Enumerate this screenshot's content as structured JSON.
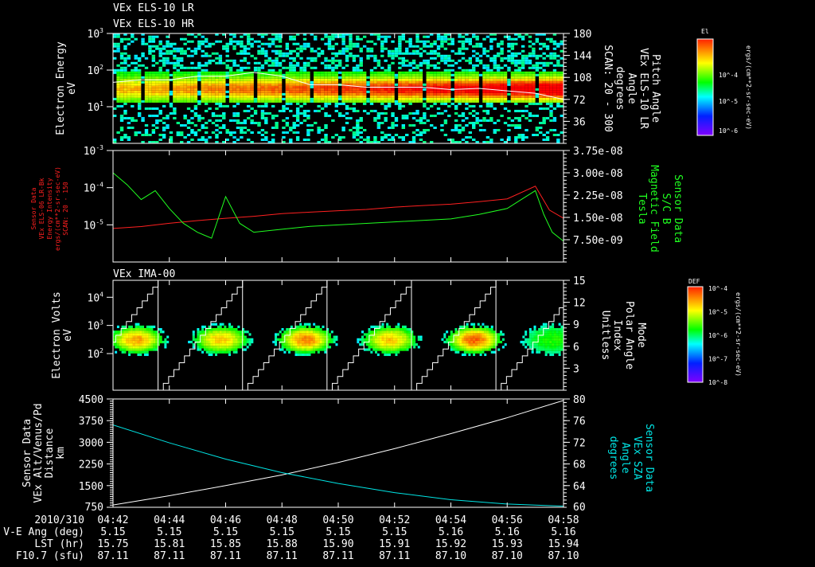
{
  "chart_data": [
    {
      "type": "heatmap",
      "titles": [
        "VEx ELS-10 LR",
        "VEx ELS-10 HR"
      ],
      "ylabel": [
        "Electron Energy",
        "eV"
      ],
      "yscale": "log",
      "ylim": [
        1,
        1000
      ],
      "yticks": [
        {
          "base": "10",
          "exp": "3",
          "v": 1000
        },
        {
          "base": "10",
          "exp": "2",
          "v": 100
        },
        {
          "base": "10",
          "exp": "1",
          "v": 10
        }
      ],
      "y2label": [
        "Pitch Angle",
        "VEx ELS-10 LR",
        "Angle",
        "degrees",
        "SCAN: 20 - 300"
      ],
      "y2lim": [
        0,
        180
      ],
      "y2ticks": [
        "180",
        "144",
        "108",
        "72",
        "36"
      ],
      "colorbar": {
        "title": "El",
        "units": "ergs/(cm**2-sr-sec-eV)",
        "ticks": [
          {
            "base": "10",
            "exp": "-4"
          },
          {
            "base": "10",
            "exp": "-5"
          },
          {
            "base": "10",
            "exp": "-6"
          }
        ]
      },
      "overlay_line": {
        "color": "#ffffff",
        "t_min": [
          0,
          1,
          2,
          3,
          4,
          5,
          6,
          7,
          8,
          9,
          10,
          11,
          12,
          13,
          14,
          15,
          16
        ],
        "degrees": [
          100,
          104,
          104,
          110,
          110,
          116,
          110,
          96,
          96,
          92,
          92,
          92,
          88,
          90,
          86,
          82,
          72
        ]
      }
    },
    {
      "type": "line",
      "ylabel": [
        "Sensor Data",
        "VEx ELS-06 LR-Bk",
        "Energy Intensity",
        "ergs/(cm**2-sr-sec-eV)",
        "SCAN: 20 - 150"
      ],
      "yscale": "log",
      "ylim": [
        1e-06,
        0.001
      ],
      "yticks": [
        {
          "base": "10",
          "exp": "-3",
          "v": 0.001
        },
        {
          "base": "10",
          "exp": "-4",
          "v": 0.0001
        },
        {
          "base": "10",
          "exp": "-5",
          "v": 1e-05
        }
      ],
      "y2label": [
        "Sensor Data",
        "S/C B",
        "Magnetic Field",
        "Tesla"
      ],
      "y2lim": [
        0,
        3.75e-08
      ],
      "y2ticks": [
        "3.75e-08",
        "3.00e-08",
        "2.25e-08",
        "1.50e-08",
        "7.50e-09"
      ],
      "series": [
        {
          "name": "Energy Intensity",
          "color": "#ff2020",
          "axis": "left",
          "t_min": [
            0,
            1,
            2,
            3,
            4,
            5,
            6,
            7,
            8,
            9,
            10,
            11,
            12,
            13,
            14,
            15,
            15.5,
            16
          ],
          "values": [
            8e-06,
            9e-06,
            1.1e-05,
            1.3e-05,
            1.5e-05,
            1.7e-05,
            2e-05,
            2.2e-05,
            2.4e-05,
            2.6e-05,
            3e-05,
            3.3e-05,
            3.6e-05,
            4.2e-05,
            5e-05,
            0.00011,
            2.5e-05,
            1.5e-05
          ]
        },
        {
          "name": "S/C B",
          "color": "#20ff20",
          "axis": "right",
          "t_min": [
            0,
            0.5,
            1,
            1.5,
            2,
            2.5,
            3,
            3.5,
            4,
            4.5,
            5,
            6,
            7,
            8,
            9,
            10,
            11,
            12,
            13,
            14,
            14.5,
            15,
            15.3,
            15.6,
            16
          ],
          "values": [
            3e-08,
            2.6e-08,
            2.1e-08,
            2.4e-08,
            1.8e-08,
            1.3e-08,
            1e-08,
            8e-09,
            2.2e-08,
            1.3e-08,
            1e-08,
            1.1e-08,
            1.2e-08,
            1.25e-08,
            1.3e-08,
            1.35e-08,
            1.4e-08,
            1.45e-08,
            1.6e-08,
            1.8e-08,
            2.1e-08,
            2.4e-08,
            1.6e-08,
            1e-08,
            7e-09
          ]
        }
      ]
    },
    {
      "type": "heatmap",
      "title": "VEx IMA-00",
      "ylabel": [
        "Electron Volts",
        "eV"
      ],
      "yscale": "log",
      "ylim": [
        5,
        40000
      ],
      "yticks": [
        {
          "base": "10",
          "exp": "4",
          "v": 10000
        },
        {
          "base": "10",
          "exp": "3",
          "v": 1000
        },
        {
          "base": "10",
          "exp": "2",
          "v": 100
        }
      ],
      "y2label": [
        "Mode",
        "Polar Angle",
        "Index",
        "Unitless"
      ],
      "y2lim": [
        0,
        15
      ],
      "y2ticks": [
        "15",
        "12",
        "9",
        "6",
        "3"
      ],
      "blob_centers_t_min": [
        0.8,
        3.8,
        6.8,
        9.8,
        12.8,
        15.6
      ],
      "blob_intensity": [
        0.8,
        0.75,
        0.85,
        0.75,
        0.9,
        0.35
      ],
      "mode_resets_t_min": [
        1.6,
        4.6,
        7.6,
        10.6,
        13.6,
        16.6
      ],
      "colorbar": {
        "title": "DEF",
        "units": "ergs/(cm**2-sr-sec-eV)",
        "ticks": [
          {
            "base": "10",
            "exp": "-4"
          },
          {
            "base": "10",
            "exp": "-5"
          },
          {
            "base": "10",
            "exp": "-6"
          },
          {
            "base": "10",
            "exp": "-7"
          },
          {
            "base": "10",
            "exp": "-8"
          }
        ]
      }
    },
    {
      "type": "line",
      "ylabel": [
        "Sensor Data",
        "VEx Alt/Venus/Pd",
        "Distance",
        "km"
      ],
      "ylim": [
        750,
        4500
      ],
      "yticks": [
        "4500",
        "3750",
        "3000",
        "2250",
        "1500",
        "750"
      ],
      "y2label": [
        "Sensor Data",
        "VEx SZA",
        "Angle",
        "degrees"
      ],
      "y2lim": [
        60,
        80
      ],
      "y2ticks": [
        "80",
        "76",
        "72",
        "68",
        "64",
        "60"
      ],
      "series": [
        {
          "name": "Altitude",
          "color": "#ffffff",
          "axis": "left",
          "t_min": [
            0,
            2,
            4,
            6,
            8,
            10,
            12,
            14,
            16
          ],
          "values": [
            830,
            1150,
            1500,
            1870,
            2300,
            2780,
            3300,
            3850,
            4450
          ]
        },
        {
          "name": "SZA",
          "color": "#00e5e5",
          "axis": "right",
          "t_min": [
            0,
            2,
            4,
            6,
            8,
            10,
            12,
            14,
            16
          ],
          "values": [
            75.2,
            71.9,
            68.9,
            66.4,
            64.4,
            62.7,
            61.4,
            60.6,
            60.2
          ]
        }
      ]
    }
  ],
  "x_axis": {
    "date_label": "2010/310",
    "ticks": [
      "04:42",
      "04:44",
      "04:46",
      "04:48",
      "04:50",
      "04:52",
      "04:54",
      "04:56",
      "04:58"
    ],
    "rows": [
      {
        "label": "V-E Ang (deg)",
        "values": [
          "5.15",
          "5.15",
          "5.15",
          "5.15",
          "5.15",
          "5.15",
          "5.16",
          "5.16",
          "5.16"
        ]
      },
      {
        "label": "LST (hr)",
        "values": [
          "15.75",
          "15.81",
          "15.85",
          "15.88",
          "15.90",
          "15.91",
          "15.92",
          "15.93",
          "15.94"
        ]
      },
      {
        "label": "F10.7 (sfu)",
        "values": [
          "87.11",
          "87.11",
          "87.11",
          "87.11",
          "87.11",
          "87.11",
          "87.10",
          "87.10",
          "87.10"
        ]
      }
    ]
  }
}
